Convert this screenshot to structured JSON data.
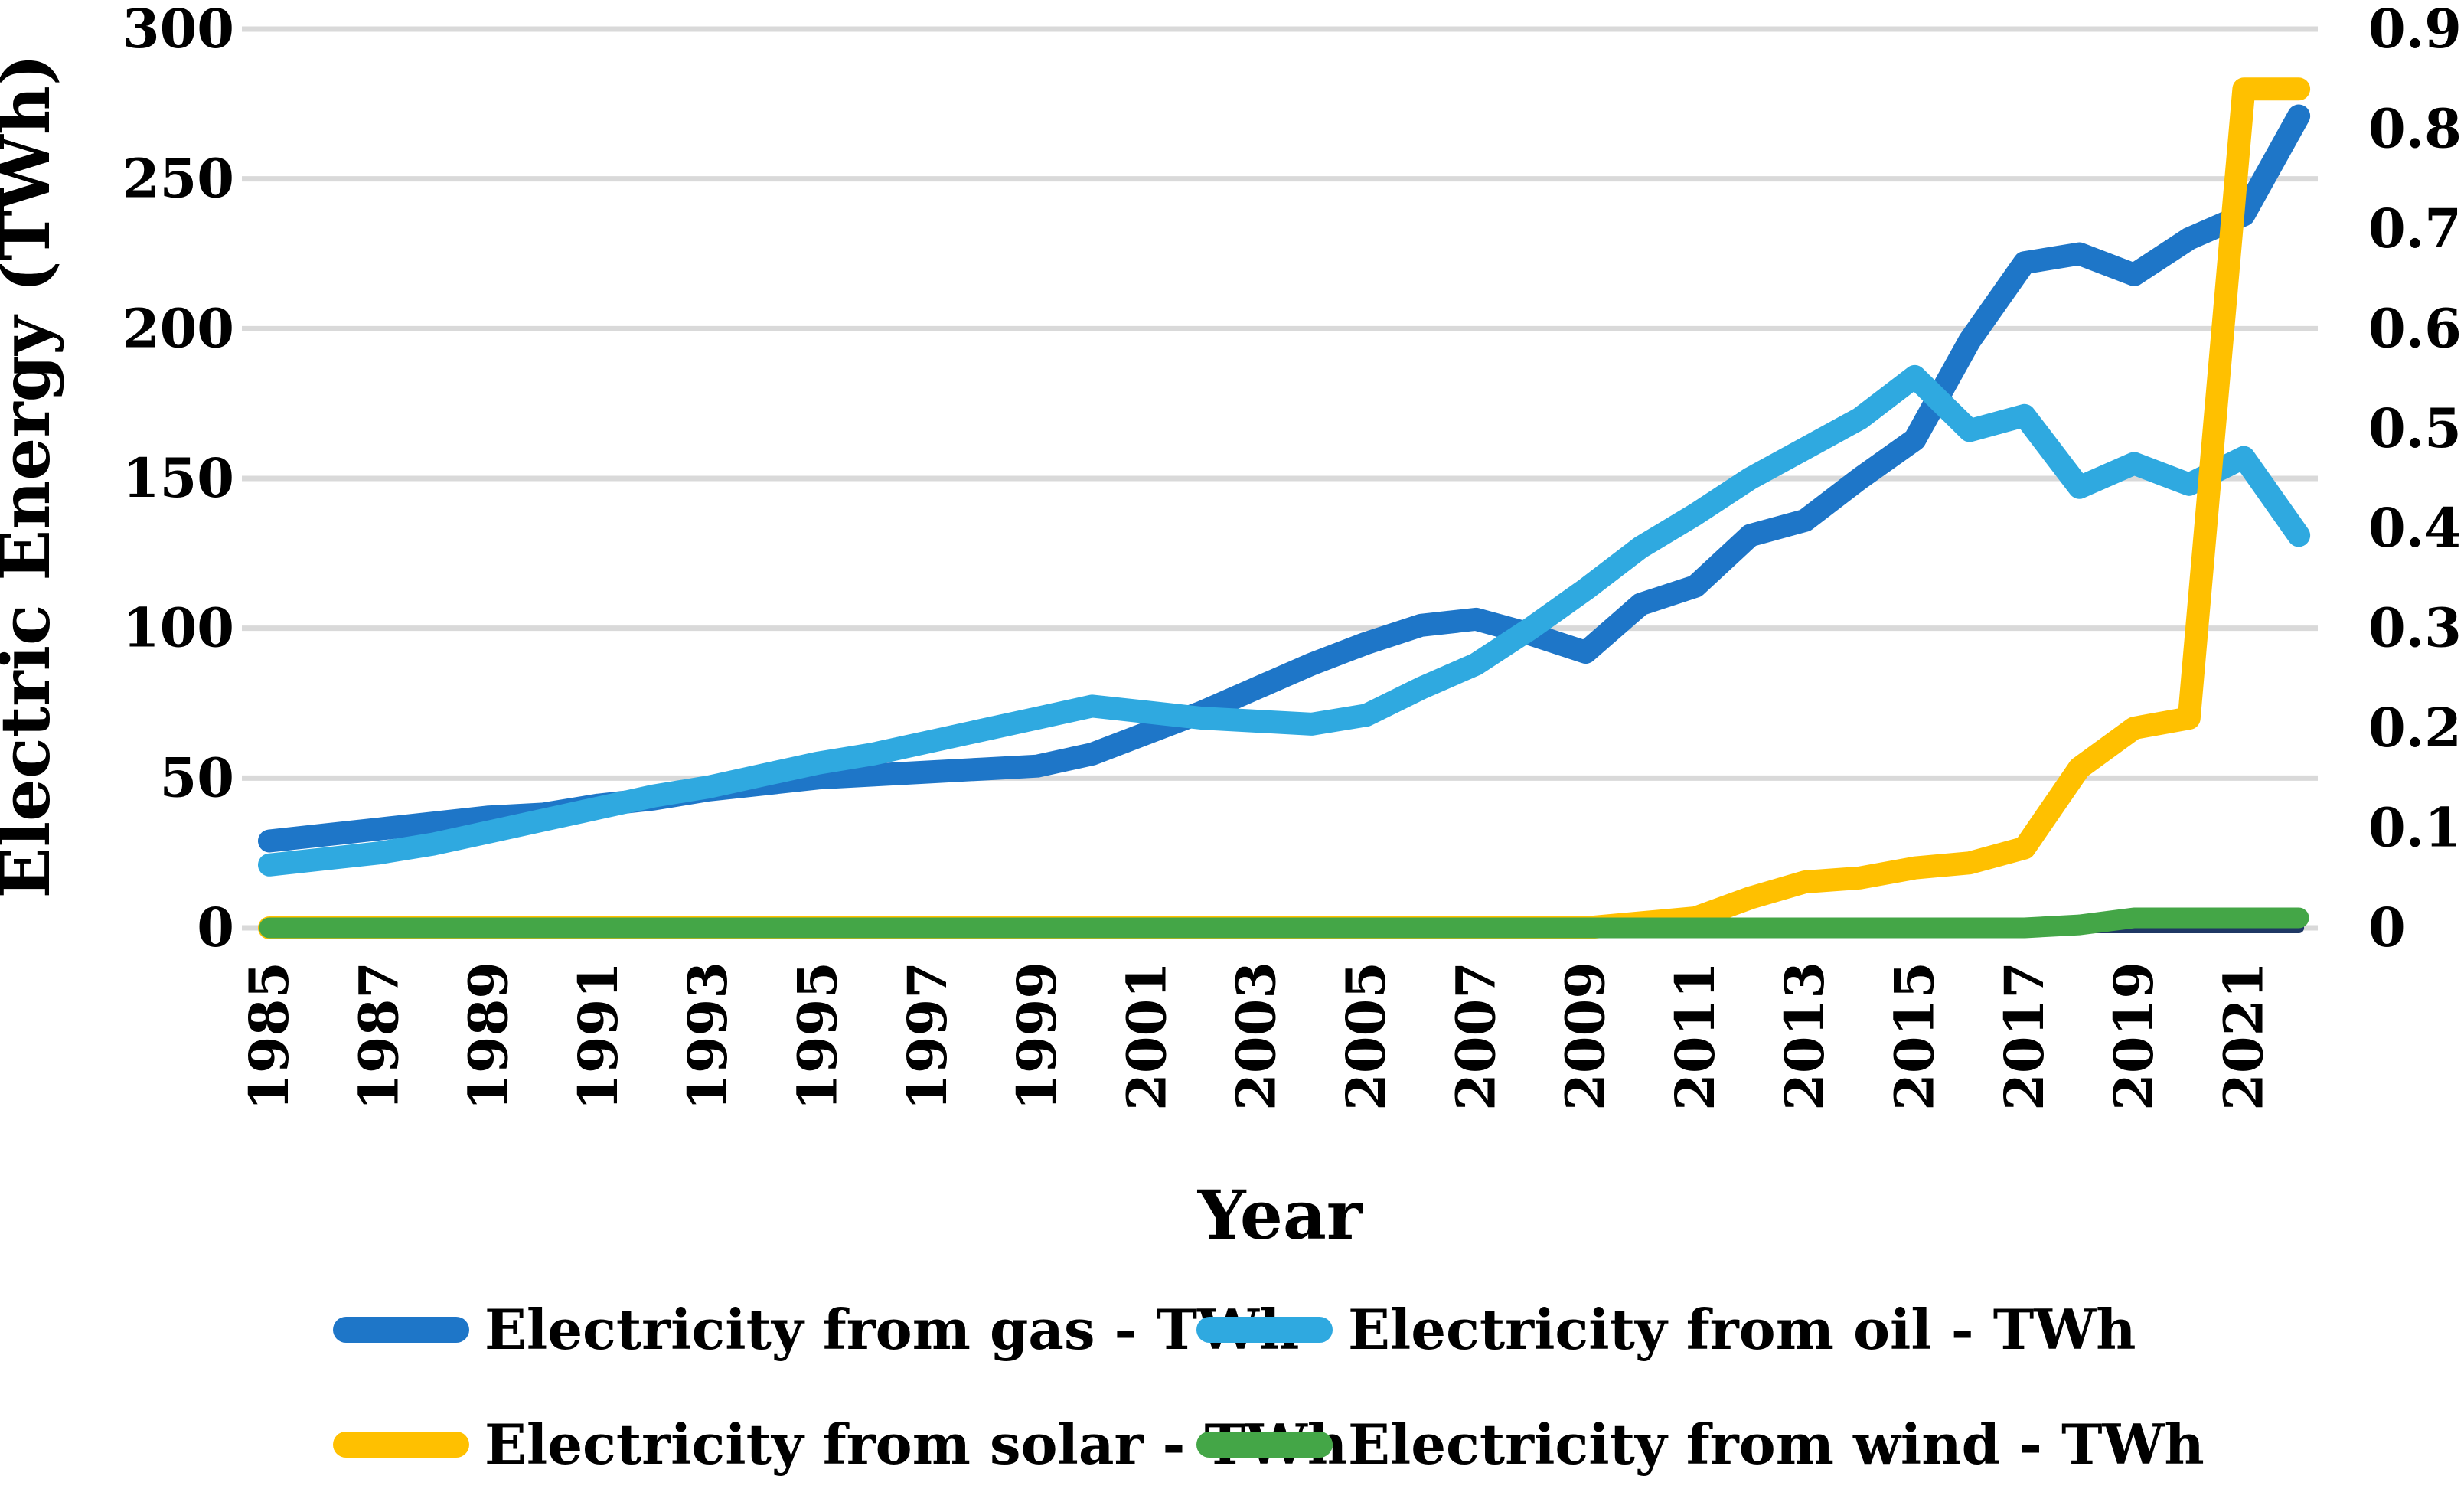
{
  "chart_data": {
    "type": "line",
    "title": "",
    "xlabel": "Year",
    "ylabel": "Electric Energy (TWh)",
    "grid": "horizontal-only",
    "gridline_color": "#D9D9D9",
    "background_color": "#FFFFFF",
    "x": [
      1985,
      1986,
      1987,
      1988,
      1989,
      1990,
      1991,
      1992,
      1993,
      1994,
      1995,
      1996,
      1997,
      1998,
      1999,
      2000,
      2001,
      2002,
      2003,
      2004,
      2005,
      2006,
      2007,
      2008,
      2009,
      2010,
      2011,
      2012,
      2013,
      2014,
      2015,
      2016,
      2017,
      2018,
      2019,
      2020,
      2021,
      2022
    ],
    "x_tick_labels": [
      "1985",
      "1987",
      "1989",
      "1991",
      "1993",
      "1995",
      "1997",
      "1999",
      "2001",
      "2003",
      "2005",
      "2007",
      "2009",
      "2011",
      "2013",
      "2015",
      "2017",
      "2019",
      "2021"
    ],
    "x_tick_rotation_degrees": -90,
    "y_axis_left": {
      "min": 0,
      "max": 300,
      "tick_step": 50,
      "tick_labels": [
        "300",
        "250",
        "200",
        "150",
        "100",
        "50",
        "0"
      ]
    },
    "y_axis_right": {
      "min": 0,
      "max": 0.9,
      "tick_step": 0.1,
      "tick_labels": [
        "0.9",
        "0.8",
        "0.7",
        "0.6",
        "0.5",
        "0.4",
        "0.3",
        "0.2",
        "0.1",
        "0"
      ]
    },
    "series": [
      {
        "name": "unlabeled zero baseline line",
        "color": "#1F3864",
        "axis": "left",
        "in_legend": false,
        "values": [
          0,
          0,
          0,
          0,
          0,
          0,
          0,
          0,
          0,
          0,
          0,
          0,
          0,
          0,
          0,
          0,
          0,
          0,
          0,
          0,
          0,
          0,
          0,
          0,
          0,
          0,
          0,
          0,
          0,
          0,
          0,
          0,
          0,
          0,
          0,
          0,
          0,
          0
        ]
      },
      {
        "name": "Electricity from gas - TWh",
        "color": "#1E76C8",
        "axis": "left",
        "in_legend": true,
        "values": [
          29,
          31,
          33,
          35,
          37,
          38,
          41,
          43,
          46,
          48,
          50,
          51,
          52,
          53,
          54,
          58,
          65,
          72,
          80,
          88,
          95,
          101,
          103,
          98,
          92,
          108,
          114,
          131,
          136,
          150,
          163,
          196,
          222,
          225,
          218,
          230,
          238,
          271
        ]
      },
      {
        "name": "Electricity from oil - TWh",
        "color": "#2FA9E0",
        "axis": "left",
        "in_legend": true,
        "values": [
          21,
          23,
          25,
          28,
          32,
          36,
          40,
          44,
          47,
          51,
          55,
          58,
          62,
          66,
          70,
          74,
          72,
          70,
          69,
          68,
          71,
          80,
          88,
          100,
          113,
          127,
          138,
          150,
          160,
          170,
          184,
          166,
          171,
          147,
          155,
          148,
          157,
          131
        ]
      },
      {
        "name": "Electricity from solar - TWh",
        "color": "#FFC000",
        "axis": "right",
        "in_legend": true,
        "values": [
          0,
          0,
          0,
          0,
          0,
          0,
          0,
          0,
          0,
          0,
          0,
          0,
          0,
          0,
          0,
          0,
          0,
          0,
          0,
          0,
          0,
          0,
          0,
          0,
          0,
          0.005,
          0.01,
          0.03,
          0.046,
          0.05,
          0.06,
          0.065,
          0.08,
          0.16,
          0.2,
          0.21,
          0.84,
          0.84
        ]
      },
      {
        "name": "Electricity from wind - TWh",
        "color": "#44A647",
        "axis": "right",
        "in_legend": true,
        "values": [
          0,
          0,
          0,
          0,
          0,
          0,
          0,
          0,
          0,
          0,
          0,
          0,
          0,
          0,
          0,
          0,
          0,
          0,
          0,
          0,
          0,
          0,
          0,
          0,
          0,
          0,
          0,
          0,
          0,
          0,
          0,
          0,
          0,
          0.003,
          0.01,
          0.01,
          0.01,
          0.01
        ]
      }
    ]
  },
  "legend": {
    "items": [
      {
        "label": "Electricity from gas - TWh",
        "color": "#1E76C8"
      },
      {
        "label": "Electricity from oil - TWh",
        "color": "#2FA9E0"
      },
      {
        "label": "Electricity from solar - TWh",
        "color": "#FFC000"
      },
      {
        "label": "Electricity from wind - TWh",
        "color": "#44A647"
      }
    ]
  }
}
